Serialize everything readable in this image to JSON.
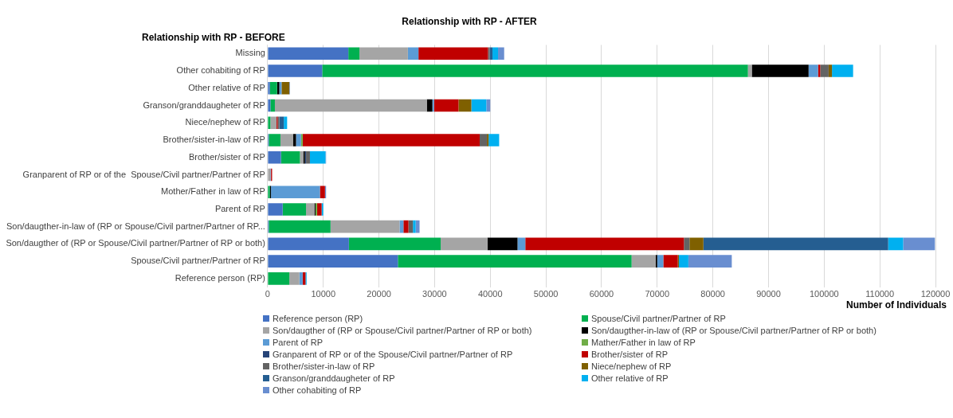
{
  "chart_data": {
    "type": "bar",
    "orientation": "horizontal",
    "stacked": true,
    "title": "Relationship with RP - AFTER",
    "ylabel": "Relationship with RP - BEFORE",
    "xlabel": "Number of Individuals",
    "categories": [
      "Missing",
      "Other cohabiting of RP",
      "Other relative of RP",
      "Granson/granddaugheter of RP",
      "Niece/nephew of RP",
      "Brother/sister-in-law of RP",
      "Brother/sister of RP",
      "Granparent of RP or of the  Spouse/Civil partner/Partner of RP",
      "Mother/Father in law of RP",
      "Parent of RP",
      "Son/daugther-in-law of (RP or Spouse/Civil partner/Partner of RP...",
      "Son/daugther of (RP or Spouse/Civil partner/Partner of RP or both)",
      "Spouse/Civil partner/Partner of RP",
      "Reference person (RP)"
    ],
    "series": [
      {
        "name": "Reference person (RP)",
        "color": "#4472c4",
        "values": [
          14500,
          9800,
          400,
          500,
          0,
          200,
          2400,
          0,
          0,
          2700,
          200,
          14600,
          23400,
          0
        ]
      },
      {
        "name": "Spouse/Civil partner/Partner of RP",
        "color": "#00b050",
        "values": [
          2000,
          76500,
          1300,
          800,
          500,
          2100,
          3400,
          0,
          400,
          4200,
          11100,
          16500,
          42000,
          3900
        ]
      },
      {
        "name": "Son/daugther of (RP or Spouse/Civil partner/Partner of RP or both)",
        "color": "#a5a5a5",
        "values": [
          8700,
          700,
          0,
          27300,
          1100,
          2300,
          600,
          500,
          0,
          1500,
          12400,
          8400,
          4300,
          1800
        ]
      },
      {
        "name": "Son/daugther-in-law of (RP or Spouse/Civil partner/Partner of RP or both)",
        "color": "#000000",
        "values": [
          0,
          10200,
          400,
          1000,
          0,
          500,
          300,
          0,
          200,
          200,
          0,
          5400,
          300,
          0
        ]
      },
      {
        "name": "Parent of RP",
        "color": "#5b9bd5",
        "values": [
          1900,
          1700,
          400,
          300,
          0,
          900,
          0,
          100,
          8800,
          0,
          700,
          1400,
          1100,
          600
        ]
      },
      {
        "name": "Mather/Father in law of RP",
        "color": "#70ad47",
        "values": [
          0,
          0,
          0,
          0,
          0,
          300,
          0,
          0,
          0,
          300,
          0,
          0,
          0,
          0
        ]
      },
      {
        "name": "Granparent of RP or of the  Spouse/Civil partner/Partner of RP",
        "color": "#264478",
        "values": [
          0,
          0,
          0,
          0,
          0,
          0,
          200,
          0,
          0,
          0,
          0,
          0,
          0,
          0
        ]
      },
      {
        "name": "Brother/sister of RP",
        "color": "#c00000",
        "values": [
          12500,
          400,
          0,
          4400,
          200,
          31800,
          0,
          200,
          900,
          800,
          900,
          28500,
          2600,
          500
        ]
      },
      {
        "name": "Brother/sister-in-law of RP",
        "color": "#636363",
        "values": [
          300,
          1500,
          0,
          0,
          300,
          1300,
          700,
          0,
          0,
          0,
          800,
          1000,
          0,
          0
        ]
      },
      {
        "name": "Niece/nephew of RP",
        "color": "#7f6000",
        "values": [
          0,
          600,
          1400,
          2300,
          0,
          300,
          0,
          0,
          0,
          0,
          0,
          2500,
          200,
          0
        ]
      },
      {
        "name": "Granson/granddaugheter of RP",
        "color": "#255e91",
        "values": [
          500,
          0,
          0,
          0,
          800,
          0,
          0,
          0,
          0,
          0,
          0,
          33200,
          0,
          0
        ]
      },
      {
        "name": "Other relative of RP",
        "color": "#00b0f0",
        "values": [
          1000,
          3800,
          0,
          2700,
          600,
          1900,
          2800,
          0,
          0,
          300,
          500,
          2700,
          1700,
          200
        ]
      },
      {
        "name": "Other cohabiting of RP",
        "color": "#698ed0",
        "values": [
          1100,
          0,
          100,
          700,
          0,
          0,
          100,
          0,
          200,
          0,
          700,
          5700,
          7800,
          0
        ]
      }
    ],
    "xlim": [
      0,
      120000
    ],
    "xticks": [
      0,
      10000,
      20000,
      30000,
      40000,
      50000,
      60000,
      70000,
      80000,
      90000,
      100000,
      110000,
      120000
    ],
    "grid": "x",
    "legend": "bottom"
  }
}
